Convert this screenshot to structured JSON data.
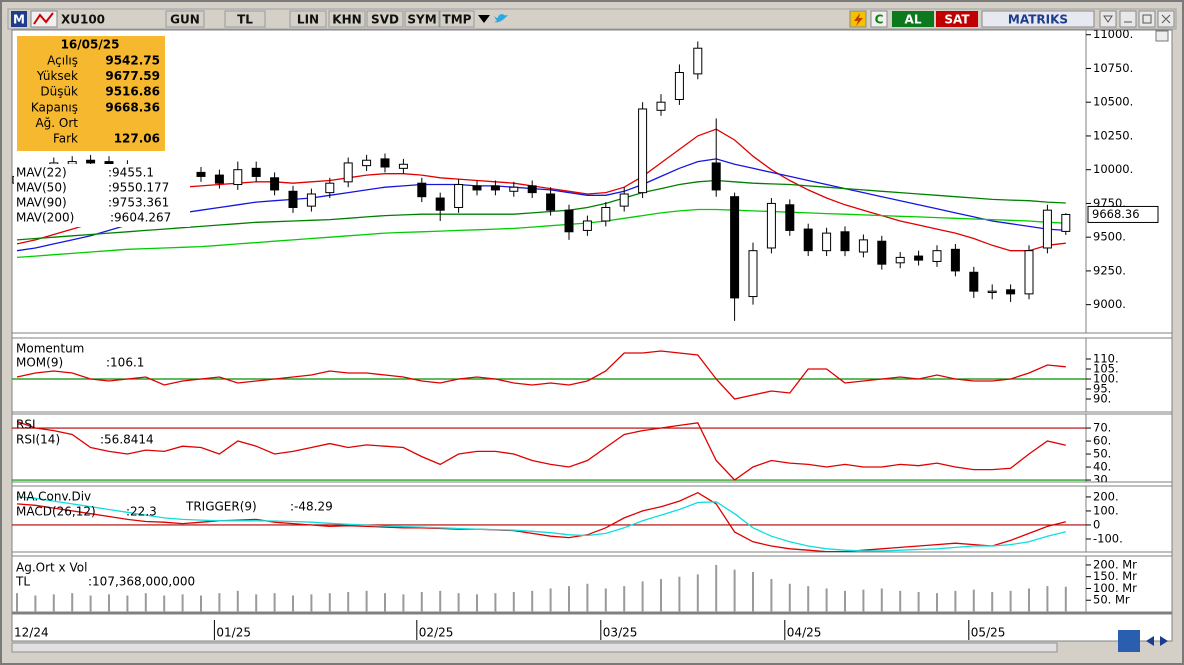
{
  "toolbar": {
    "symbol": "XU100",
    "buttons": [
      "GUN",
      "TL",
      "LIN",
      "KHN",
      "SVD",
      "SYM",
      "TMP"
    ],
    "buy": "AL",
    "sell": "SAT",
    "brand": "MATRIKS"
  },
  "info_box": {
    "date": "16/05/25",
    "rows": [
      {
        "label": "Açılış",
        "value": 9542.75
      },
      {
        "label": "Yüksek",
        "value": 9677.59
      },
      {
        "label": "Düşük",
        "value": 9516.86
      },
      {
        "label": "Kapanış",
        "value": 9668.36
      },
      {
        "label": "Ağ. Ort"
      },
      {
        "label": "Fark",
        "value": 127.06
      }
    ]
  },
  "chart_data": [
    {
      "type": "candlestick",
      "categories": [
        "12/24",
        null,
        null,
        null,
        null,
        null,
        null,
        null,
        null,
        null,
        null,
        "01/25",
        null,
        null,
        null,
        null,
        null,
        null,
        null,
        null,
        null,
        null,
        "02/25",
        null,
        null,
        null,
        null,
        null,
        null,
        null,
        null,
        null,
        "03/25",
        null,
        null,
        null,
        null,
        null,
        null,
        null,
        null,
        null,
        "04/25",
        null,
        null,
        null,
        null,
        null,
        null,
        null,
        null,
        null,
        "05/25",
        null,
        null,
        null,
        null,
        null
      ],
      "open": [
        9900,
        9960,
        10010,
        10040,
        10070,
        10060,
        10030,
        9990,
        9930,
        9940,
        9980,
        9960,
        9890,
        10010,
        9940,
        9840,
        9730,
        9830,
        9910,
        10030,
        10080,
        10010,
        9900,
        9790,
        9720,
        9880,
        9880,
        9840,
        9880,
        9820,
        9700,
        9550,
        9620,
        9730,
        9830,
        10440,
        10520,
        10710,
        10050,
        9800,
        9060,
        9420,
        9740,
        9560,
        9400,
        9540,
        9390,
        9470,
        9310,
        9360,
        9320,
        9410,
        9240,
        9090,
        9110,
        9080,
        9420,
        9542.75
      ],
      "high": [
        9990,
        10040,
        10090,
        10100,
        10110,
        10100,
        10070,
        10030,
        9990,
        10000,
        10020,
        10000,
        10060,
        10060,
        9980,
        9880,
        9860,
        9940,
        10090,
        10110,
        10120,
        10080,
        9940,
        9830,
        9930,
        9920,
        9920,
        9910,
        9920,
        9870,
        9740,
        9660,
        9760,
        9870,
        10500,
        10560,
        10780,
        10950,
        10380,
        9830,
        9460,
        9790,
        9780,
        9600,
        9570,
        9580,
        9520,
        9510,
        9390,
        9400,
        9440,
        9450,
        9280,
        9150,
        9150,
        9440,
        9740,
        9677.59
      ],
      "low": [
        9860,
        9920,
        9970,
        10000,
        10010,
        10000,
        9960,
        9910,
        9890,
        9900,
        9910,
        9860,
        9850,
        9910,
        9810,
        9680,
        9690,
        9790,
        9870,
        9990,
        9980,
        9970,
        9760,
        9620,
        9680,
        9810,
        9810,
        9800,
        9790,
        9660,
        9480,
        9510,
        9580,
        9690,
        9790,
        10400,
        10480,
        10670,
        9800,
        8880,
        9000,
        9380,
        9510,
        9360,
        9360,
        9360,
        9350,
        9260,
        9270,
        9290,
        9280,
        9210,
        9050,
        9040,
        9020,
        9040,
        9380,
        9516.86
      ],
      "close": [
        9950,
        10000,
        10050,
        10060,
        10050,
        10040,
        10000,
        9950,
        9950,
        9960,
        9950,
        9900,
        10000,
        9950,
        9850,
        9720,
        9820,
        9900,
        10050,
        10070,
        10020,
        10040,
        9800,
        9700,
        9890,
        9850,
        9850,
        9870,
        9830,
        9700,
        9540,
        9620,
        9720,
        9820,
        10450,
        10500,
        10720,
        10900,
        9850,
        9050,
        9400,
        9750,
        9550,
        9400,
        9530,
        9400,
        9480,
        9300,
        9350,
        9330,
        9400,
        9250,
        9100,
        9100,
        9080,
        9400,
        9700,
        9668.36
      ],
      "up_color": "#ffffff",
      "down_color": "#000000",
      "series": [
        {
          "name": "MAV(22)",
          "label": ":9455.1",
          "color": "#e00000",
          "values": [
            9450,
            9480,
            9520,
            9560,
            9600,
            9680,
            9760,
            9820,
            9850,
            9870,
            9880,
            9890,
            9900,
            9910,
            9910,
            9900,
            9910,
            9920,
            9940,
            9960,
            9970,
            9970,
            9960,
            9940,
            9930,
            9920,
            9910,
            9900,
            9880,
            9860,
            9840,
            9820,
            9830,
            9870,
            9950,
            10050,
            10150,
            10250,
            10300,
            10220,
            10100,
            10000,
            9920,
            9850,
            9790,
            9740,
            9700,
            9660,
            9620,
            9590,
            9560,
            9530,
            9490,
            9440,
            9400,
            9400,
            9440,
            9455.1
          ]
        },
        {
          "name": "MAV(50)",
          "label": ":9550.177",
          "color": "#1515e0",
          "values": [
            9400,
            9420,
            9450,
            9480,
            9510,
            9550,
            9590,
            9620,
            9650,
            9680,
            9700,
            9720,
            9740,
            9760,
            9770,
            9780,
            9790,
            9810,
            9830,
            9850,
            9870,
            9880,
            9890,
            9890,
            9890,
            9880,
            9880,
            9870,
            9860,
            9850,
            9830,
            9810,
            9810,
            9840,
            9890,
            9950,
            10010,
            10060,
            10080,
            10040,
            10010,
            9980,
            9950,
            9920,
            9890,
            9860,
            9830,
            9800,
            9770,
            9740,
            9710,
            9680,
            9650,
            9620,
            9600,
            9580,
            9560,
            9550.177
          ]
        },
        {
          "name": "MAV(90)",
          "label": ":9753.361",
          "color": "#008000",
          "values": [
            9480,
            9490,
            9500,
            9510,
            9520,
            9530,
            9540,
            9550,
            9560,
            9570,
            9580,
            9590,
            9600,
            9610,
            9615,
            9620,
            9625,
            9630,
            9640,
            9650,
            9660,
            9665,
            9670,
            9670,
            9670,
            9670,
            9670,
            9670,
            9680,
            9690,
            9700,
            9720,
            9750,
            9790,
            9830,
            9860,
            9890,
            9910,
            9920,
            9910,
            9900,
            9895,
            9890,
            9880,
            9870,
            9860,
            9850,
            9840,
            9830,
            9820,
            9810,
            9800,
            9790,
            9780,
            9775,
            9770,
            9760,
            9753.361
          ]
        },
        {
          "name": "MAV(200)",
          "label": ":9604.267",
          "color": "#00cc00",
          "values": [
            9350,
            9360,
            9370,
            9380,
            9390,
            9400,
            9410,
            9415,
            9420,
            9425,
            9430,
            9440,
            9450,
            9460,
            9470,
            9480,
            9490,
            9500,
            9510,
            9520,
            9530,
            9535,
            9540,
            9545,
            9550,
            9555,
            9560,
            9565,
            9575,
            9585,
            9595,
            9605,
            9620,
            9640,
            9660,
            9680,
            9695,
            9705,
            9705,
            9700,
            9695,
            9690,
            9685,
            9680,
            9675,
            9670,
            9665,
            9660,
            9655,
            9650,
            9645,
            9640,
            9635,
            9630,
            9625,
            9620,
            9610,
            9604.267
          ]
        }
      ],
      "ylim": [
        8790,
        11035
      ],
      "yticks": [
        {
          "value": 11000,
          "label": "11000."
        },
        {
          "value": 10750,
          "label": "10750."
        },
        {
          "value": 10500,
          "label": "10500."
        },
        {
          "value": 10250,
          "label": "10250."
        },
        {
          "value": 10000,
          "label": "10000."
        },
        {
          "value": 9750,
          "label": "9750."
        },
        {
          "value": 9500,
          "label": "9500."
        },
        {
          "value": 9250,
          "label": "9250."
        },
        {
          "value": 9000,
          "label": "9000."
        },
        {
          "value": 8750,
          "label": "8750."
        }
      ]
    },
    {
      "type": "line",
      "title": "Momentum",
      "series": [
        {
          "name": "MOM(9)",
          "label": ":106.1",
          "color": "#e00000",
          "values": [
            101,
            103,
            104,
            103,
            100,
            99,
            100,
            101,
            97,
            99,
            100,
            101,
            98,
            99,
            100,
            101,
            102,
            104,
            103,
            103,
            102,
            101,
            99,
            98,
            100,
            101,
            100,
            98,
            97,
            98,
            97,
            99,
            104,
            113,
            113,
            114,
            113,
            112,
            100,
            90,
            92,
            94,
            93,
            105,
            105,
            98,
            99,
            100,
            101,
            100,
            102,
            100,
            99,
            99,
            100,
            103,
            107,
            106.1
          ]
        }
      ],
      "reference_lines": [
        {
          "value": 100,
          "color": "#009000"
        }
      ],
      "ylim": [
        83.5,
        120.5
      ],
      "yticks": [
        {
          "value": 110,
          "label": "110."
        },
        {
          "value": 105,
          "label": "105."
        },
        {
          "value": 100,
          "label": "100."
        },
        {
          "value": 95,
          "label": "95."
        },
        {
          "value": 90,
          "label": "90."
        }
      ]
    },
    {
      "type": "line",
      "title": "RSI",
      "series": [
        {
          "name": "RSI(14)",
          "label": ":56.8414",
          "color": "#e00000",
          "values": [
            75,
            70,
            68,
            65,
            55,
            52,
            50,
            53,
            52,
            56,
            55,
            50,
            60,
            56,
            50,
            52,
            55,
            58,
            55,
            57,
            56,
            55,
            48,
            42,
            50,
            52,
            52,
            50,
            45,
            42,
            40,
            45,
            55,
            65,
            68,
            70,
            72,
            74,
            45,
            30,
            40,
            45,
            43,
            42,
            40,
            42,
            40,
            40,
            42,
            41,
            43,
            40,
            38,
            38,
            39,
            50,
            60,
            56.8414
          ]
        }
      ],
      "reference_lines": [
        {
          "value": 70,
          "color": "#b00000"
        },
        {
          "value": 30,
          "color": "#009000"
        }
      ],
      "ylim": [
        28.5,
        80.8
      ],
      "yticks": [
        {
          "value": 70,
          "label": "70."
        },
        {
          "value": 60,
          "label": "60."
        },
        {
          "value": 50,
          "label": "50."
        },
        {
          "value": 40,
          "label": "40."
        },
        {
          "value": 30,
          "label": "30."
        }
      ]
    },
    {
      "type": "line",
      "title": "MA.Conv.Div",
      "series": [
        {
          "name": "MACD(26,12)",
          "label": ":22.3",
          "color": "#e00000",
          "values": [
            150,
            140,
            120,
            100,
            80,
            60,
            40,
            25,
            20,
            10,
            20,
            30,
            35,
            40,
            20,
            10,
            0,
            -10,
            -5,
            -10,
            -15,
            -20,
            -20,
            -25,
            -30,
            -30,
            -35,
            -40,
            -60,
            -80,
            -90,
            -70,
            -20,
            50,
            100,
            130,
            170,
            230,
            150,
            -50,
            -120,
            -150,
            -170,
            -180,
            -190,
            -190,
            -180,
            -170,
            -160,
            -150,
            -140,
            -130,
            -140,
            -150,
            -110,
            -60,
            -10,
            22.3
          ]
        },
        {
          "name": "TRIGGER(9)",
          "label": ":-48.29",
          "color": "#10dede",
          "values": [
            200,
            190,
            170,
            150,
            130,
            110,
            90,
            70,
            50,
            40,
            35,
            30,
            30,
            30,
            28,
            25,
            20,
            12,
            5,
            -2,
            -8,
            -12,
            -15,
            -20,
            -25,
            -30,
            -33,
            -37,
            -45,
            -55,
            -70,
            -75,
            -60,
            -20,
            30,
            70,
            110,
            160,
            165,
            80,
            -20,
            -80,
            -120,
            -150,
            -170,
            -180,
            -185,
            -185,
            -180,
            -175,
            -170,
            -160,
            -150,
            -150,
            -140,
            -120,
            -80,
            -48.29
          ]
        }
      ],
      "reference_lines": [
        {
          "value": 0,
          "color": "#b00000"
        }
      ],
      "ylim": [
        -193,
        278
      ],
      "yticks": [
        {
          "value": 200,
          "label": "200."
        },
        {
          "value": 100,
          "label": "100."
        },
        0,
        {
          "value": -100,
          "label": "-100."
        }
      ]
    },
    {
      "type": "bar",
      "title": "Ag.Ort x Vol",
      "series": [
        {
          "name": "TL",
          "label": ":107,368,000,000",
          "color": "#9a9a9a",
          "values": [
            80,
            70,
            75,
            80,
            70,
            75,
            70,
            80,
            70,
            75,
            70,
            80,
            90,
            75,
            80,
            70,
            75,
            80,
            85,
            90,
            80,
            75,
            85,
            90,
            80,
            75,
            80,
            85,
            90,
            100,
            110,
            120,
            100,
            110,
            130,
            140,
            150,
            160,
            200,
            180,
            170,
            140,
            120,
            110,
            100,
            90,
            95,
            100,
            90,
            85,
            80,
            90,
            95,
            85,
            90,
            100,
            110,
            107.368
          ]
        }
      ],
      "ylim": [
        0,
        238
      ],
      "yticks": [
        {
          "value": 200,
          "label": "200. Mr"
        },
        {
          "value": 150,
          "label": "150. Mr"
        },
        {
          "value": 100,
          "label": "100. Mr"
        },
        {
          "value": 50,
          "label": "50. Mr"
        }
      ]
    }
  ]
}
